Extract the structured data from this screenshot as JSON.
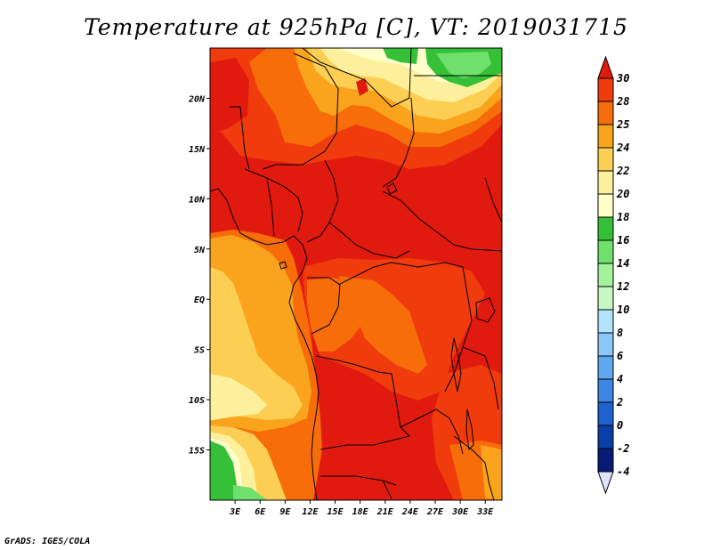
{
  "title": "Temperature at 925hPa [C], VT: 2019031715",
  "credit": "GrADS: IGES/COLA",
  "map": {
    "lon_range": [
      0,
      35
    ],
    "lat_range": [
      -20,
      25
    ],
    "lon_ticks": [
      "3E",
      "6E",
      "9E",
      "12E",
      "15E",
      "18E",
      "21E",
      "24E",
      "27E",
      "30E",
      "33E"
    ],
    "lon_values": [
      3,
      6,
      9,
      12,
      15,
      18,
      21,
      24,
      27,
      30,
      33
    ],
    "lat_ticks": [
      "20N",
      "15N",
      "10N",
      "5N",
      "EQ",
      "5S",
      "10S",
      "15S"
    ],
    "lat_values": [
      20,
      15,
      10,
      5,
      0,
      -5,
      -10,
      -15
    ]
  },
  "colorbar": {
    "levels": [
      "30",
      "28",
      "25",
      "24",
      "22",
      "20",
      "18",
      "16",
      "14",
      "12",
      "10",
      "8",
      "6",
      "4",
      "2",
      "0",
      "-2",
      "-4"
    ],
    "colors": [
      "#e11a0f",
      "#f03c0c",
      "#f76d0a",
      "#f9a41c",
      "#fcce54",
      "#fdf09c",
      "#ffffcc",
      "#36c037",
      "#6ee06b",
      "#a2f39c",
      "#c7f8c4",
      "#b3e3fb",
      "#88c7f7",
      "#5fa8ef",
      "#3d86e3",
      "#1d62cf",
      "#0a3fa8",
      "#081c77",
      "#e0e0ff"
    ]
  }
}
